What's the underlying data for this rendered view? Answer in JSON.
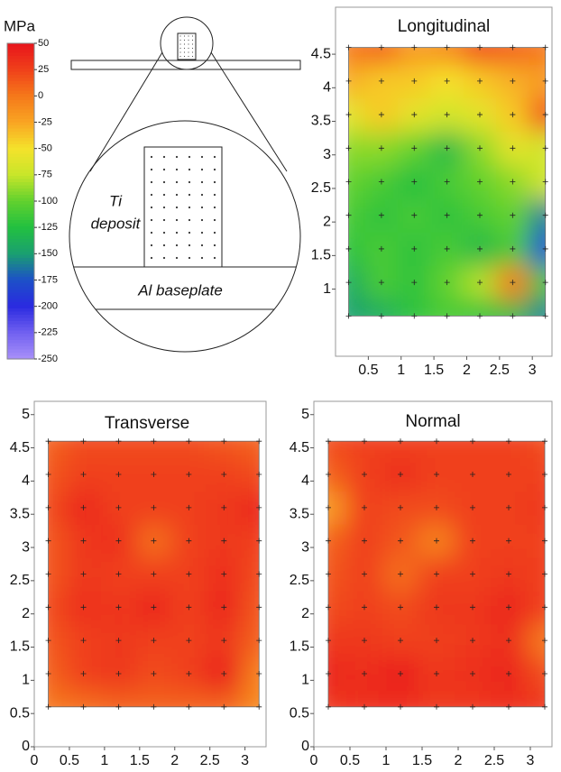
{
  "colorbar": {
    "label": "MPa",
    "ticks": [
      50,
      25,
      0,
      -25,
      -50,
      -75,
      -100,
      -125,
      -150,
      -175,
      -200,
      -225,
      -250
    ],
    "colors": [
      "#e8141c",
      "#f0401a",
      "#f5781a",
      "#f9a423",
      "#f5e22b",
      "#c8e62a",
      "#62d12e",
      "#22c040",
      "#1aa070",
      "#1c50c8",
      "#2a2ae0",
      "#7060f0",
      "#a890f8"
    ]
  },
  "diagram": {
    "deposit_label": [
      "Ti",
      "deposit"
    ],
    "baseplate_label": "Al baseplate"
  },
  "chart_data": [
    {
      "type": "heatmap",
      "title": "Longitudinal",
      "x": [
        0.2,
        0.7,
        1.2,
        1.7,
        2.2,
        2.7,
        3.2
      ],
      "y": [
        0.6,
        1.1,
        1.6,
        2.1,
        2.6,
        3.1,
        3.6,
        4.1,
        4.6
      ],
      "z": [
        [
          -150,
          -140,
          -120,
          -110,
          -120,
          -130,
          -160
        ],
        [
          -140,
          -110,
          -120,
          -100,
          -80,
          0,
          -120
        ],
        [
          -120,
          -110,
          -120,
          -110,
          -130,
          -110,
          -180
        ],
        [
          -110,
          -120,
          -110,
          -120,
          -110,
          -100,
          -160
        ],
        [
          -100,
          -110,
          -125,
          -110,
          -100,
          -90,
          -70
        ],
        [
          -90,
          -90,
          -100,
          -130,
          -90,
          -60,
          -70
        ],
        [
          -60,
          -40,
          -60,
          -70,
          -60,
          -40,
          20
        ],
        [
          -30,
          -40,
          -40,
          -50,
          -40,
          -30,
          -20
        ],
        [
          0,
          10,
          -20,
          -10,
          20,
          10,
          0
        ]
      ],
      "xlim": [
        0,
        3.3
      ],
      "ylim": [
        0,
        5.2
      ],
      "xticks": [
        0.5,
        1,
        1.5,
        2,
        2.5,
        3
      ],
      "yticks": [
        1,
        1.5,
        2,
        2.5,
        3,
        3.5,
        4,
        4.5
      ]
    },
    {
      "type": "heatmap",
      "title": "Transverse",
      "x": [
        0.2,
        0.7,
        1.2,
        1.7,
        2.2,
        2.7,
        3.2
      ],
      "y": [
        0.6,
        1.1,
        1.6,
        2.1,
        2.6,
        3.1,
        3.6,
        4.1,
        4.6
      ],
      "z": [
        [
          0,
          5,
          10,
          10,
          10,
          10,
          -10
        ],
        [
          10,
          25,
          30,
          20,
          25,
          45,
          -5
        ],
        [
          15,
          25,
          30,
          25,
          25,
          30,
          10
        ],
        [
          20,
          35,
          30,
          40,
          25,
          40,
          15
        ],
        [
          15,
          30,
          25,
          25,
          25,
          35,
          20
        ],
        [
          15,
          30,
          35,
          5,
          25,
          30,
          25
        ],
        [
          20,
          40,
          25,
          25,
          25,
          30,
          40
        ],
        [
          15,
          25,
          25,
          25,
          25,
          25,
          20
        ],
        [
          10,
          20,
          20,
          20,
          20,
          15,
          10
        ]
      ],
      "xlim": [
        0,
        3.3
      ],
      "ylim": [
        0,
        5.2
      ],
      "xticks": [
        0,
        0.5,
        1,
        1.5,
        2,
        2.5,
        3
      ],
      "yticks": [
        0,
        0.5,
        1,
        1.5,
        2,
        2.5,
        3,
        3.5,
        4,
        4.5,
        5
      ]
    },
    {
      "type": "heatmap",
      "title": "Normal",
      "x": [
        0.2,
        0.7,
        1.2,
        1.7,
        2.2,
        2.7,
        3.2
      ],
      "y": [
        0.6,
        1.1,
        1.6,
        2.1,
        2.6,
        3.1,
        3.6,
        4.1,
        4.6
      ],
      "z": [
        [
          30,
          35,
          35,
          30,
          30,
          35,
          30
        ],
        [
          40,
          35,
          45,
          30,
          35,
          40,
          20
        ],
        [
          30,
          30,
          25,
          25,
          30,
          35,
          0
        ],
        [
          20,
          25,
          20,
          30,
          30,
          40,
          25
        ],
        [
          15,
          25,
          5,
          25,
          25,
          30,
          25
        ],
        [
          10,
          25,
          15,
          -5,
          25,
          25,
          25
        ],
        [
          -20,
          25,
          20,
          20,
          25,
          25,
          30
        ],
        [
          10,
          25,
          35,
          25,
          25,
          25,
          25
        ],
        [
          20,
          25,
          25,
          25,
          25,
          25,
          20
        ]
      ],
      "xlim": [
        0,
        3.3
      ],
      "ylim": [
        0,
        5.2
      ],
      "xticks": [
        0,
        0.5,
        1,
        1.5,
        2,
        2.5,
        3
      ],
      "yticks": [
        0,
        0.5,
        1,
        1.5,
        2,
        2.5,
        3,
        3.5,
        4,
        4.5,
        5
      ]
    }
  ]
}
